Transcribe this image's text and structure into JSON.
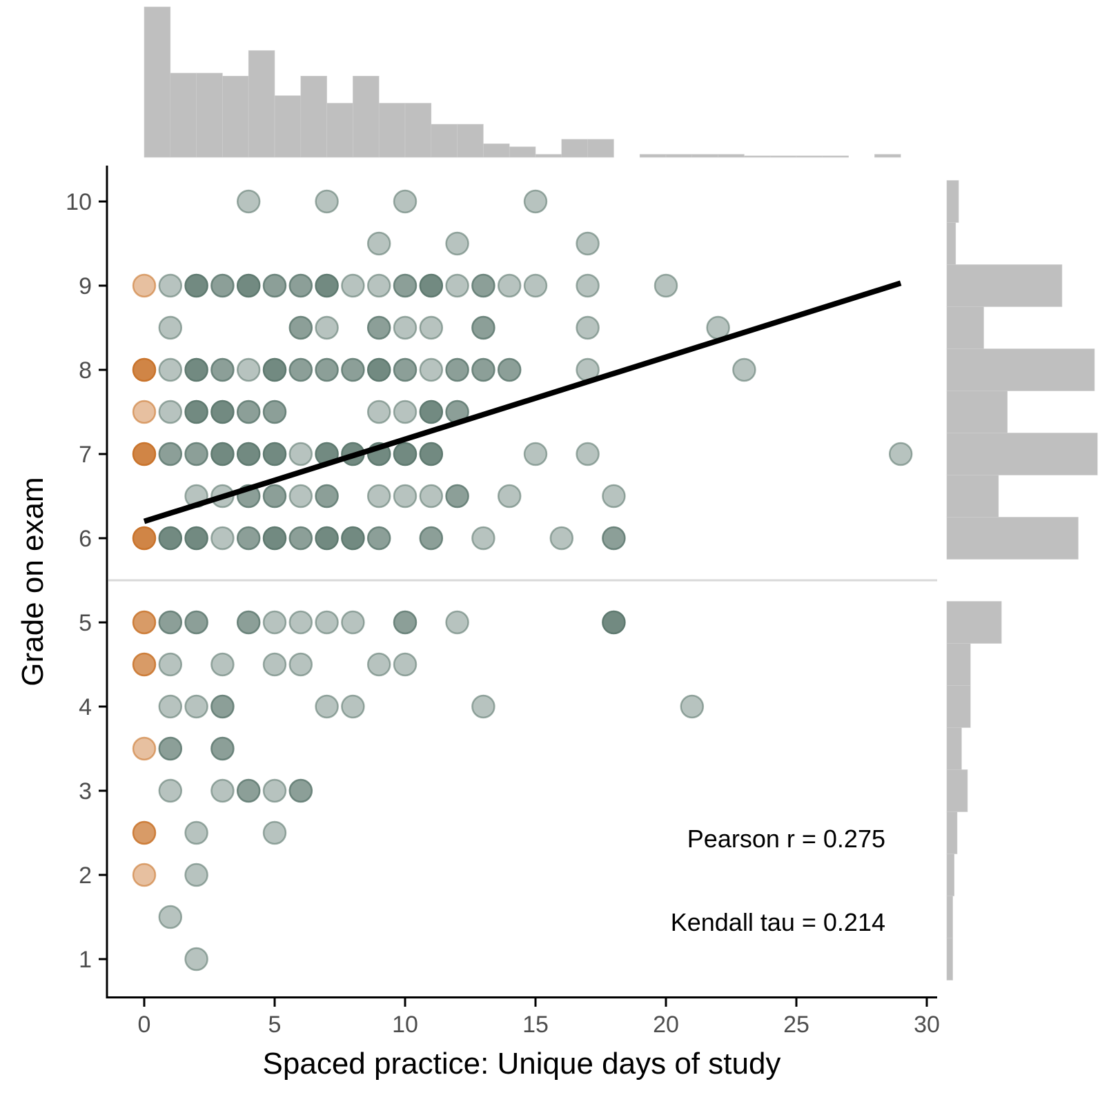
{
  "chart_data": {
    "type": "scatter",
    "x_label": "Spaced practice: Unique days of study",
    "y_label": "Grade on exam",
    "xlim": [
      -1.5,
      30.5
    ],
    "ylim": [
      0.6,
      10.4
    ],
    "x_ticks": [
      "0",
      "5",
      "10",
      "15",
      "20",
      "25",
      "30"
    ],
    "y_ticks": [
      "1",
      "2",
      "3",
      "4",
      "5",
      "6",
      "7",
      "8",
      "9",
      "10"
    ],
    "pass_threshold": 5.5,
    "annotations": {
      "pearson": "Pearson r = 0.275",
      "kendall": "Kendall tau = 0.214"
    },
    "regression_line": {
      "x": [
        0,
        29
      ],
      "y": [
        6.2,
        9.03
      ]
    },
    "colors": {
      "zero_day_points": "#c9742c",
      "study_points": "#5f7a70",
      "regression_line": "#000000",
      "histograms": "#bfbfbf",
      "threshold_line": "#d9d9d9",
      "axis": "#000000"
    },
    "points": [
      {
        "x": 4,
        "y": 10,
        "n": 1
      },
      {
        "x": 7,
        "y": 10,
        "n": 1
      },
      {
        "x": 10,
        "y": 10,
        "n": 1
      },
      {
        "x": 15,
        "y": 10,
        "n": 1
      },
      {
        "x": 9,
        "y": 9.5,
        "n": 1
      },
      {
        "x": 12,
        "y": 9.5,
        "n": 1
      },
      {
        "x": 17,
        "y": 9.5,
        "n": 1
      },
      {
        "x": 0,
        "y": 9,
        "n": 1
      },
      {
        "x": 1,
        "y": 9,
        "n": 1
      },
      {
        "x": 2,
        "y": 9,
        "n": 3
      },
      {
        "x": 3,
        "y": 9,
        "n": 2
      },
      {
        "x": 4,
        "y": 9,
        "n": 3
      },
      {
        "x": 5,
        "y": 9,
        "n": 2
      },
      {
        "x": 6,
        "y": 9,
        "n": 2
      },
      {
        "x": 7,
        "y": 9,
        "n": 3
      },
      {
        "x": 8,
        "y": 9,
        "n": 1
      },
      {
        "x": 9,
        "y": 9,
        "n": 1
      },
      {
        "x": 10,
        "y": 9,
        "n": 2
      },
      {
        "x": 11,
        "y": 9,
        "n": 3
      },
      {
        "x": 12,
        "y": 9,
        "n": 1
      },
      {
        "x": 13,
        "y": 9,
        "n": 2
      },
      {
        "x": 14,
        "y": 9,
        "n": 1
      },
      {
        "x": 15,
        "y": 9,
        "n": 1
      },
      {
        "x": 17,
        "y": 9,
        "n": 1
      },
      {
        "x": 20,
        "y": 9,
        "n": 1
      },
      {
        "x": 1,
        "y": 8.5,
        "n": 1
      },
      {
        "x": 6,
        "y": 8.5,
        "n": 2
      },
      {
        "x": 7,
        "y": 8.5,
        "n": 1
      },
      {
        "x": 9,
        "y": 8.5,
        "n": 2
      },
      {
        "x": 10,
        "y": 8.5,
        "n": 1
      },
      {
        "x": 11,
        "y": 8.5,
        "n": 1
      },
      {
        "x": 13,
        "y": 8.5,
        "n": 2
      },
      {
        "x": 17,
        "y": 8.5,
        "n": 1
      },
      {
        "x": 22,
        "y": 8.5,
        "n": 1
      },
      {
        "x": 0,
        "y": 8,
        "n": 3
      },
      {
        "x": 1,
        "y": 8,
        "n": 1
      },
      {
        "x": 2,
        "y": 8,
        "n": 3
      },
      {
        "x": 3,
        "y": 8,
        "n": 2
      },
      {
        "x": 4,
        "y": 8,
        "n": 1
      },
      {
        "x": 5,
        "y": 8,
        "n": 3
      },
      {
        "x": 6,
        "y": 8,
        "n": 2
      },
      {
        "x": 7,
        "y": 8,
        "n": 2
      },
      {
        "x": 8,
        "y": 8,
        "n": 2
      },
      {
        "x": 9,
        "y": 8,
        "n": 3
      },
      {
        "x": 10,
        "y": 8,
        "n": 2
      },
      {
        "x": 11,
        "y": 8,
        "n": 1
      },
      {
        "x": 12,
        "y": 8,
        "n": 2
      },
      {
        "x": 13,
        "y": 8,
        "n": 2
      },
      {
        "x": 14,
        "y": 8,
        "n": 2
      },
      {
        "x": 17,
        "y": 8,
        "n": 1
      },
      {
        "x": 23,
        "y": 8,
        "n": 1
      },
      {
        "x": 0,
        "y": 7.5,
        "n": 1
      },
      {
        "x": 1,
        "y": 7.5,
        "n": 1
      },
      {
        "x": 2,
        "y": 7.5,
        "n": 3
      },
      {
        "x": 3,
        "y": 7.5,
        "n": 3
      },
      {
        "x": 4,
        "y": 7.5,
        "n": 2
      },
      {
        "x": 5,
        "y": 7.5,
        "n": 2
      },
      {
        "x": 9,
        "y": 7.5,
        "n": 1
      },
      {
        "x": 10,
        "y": 7.5,
        "n": 1
      },
      {
        "x": 11,
        "y": 7.5,
        "n": 3
      },
      {
        "x": 12,
        "y": 7.5,
        "n": 2
      },
      {
        "x": 0,
        "y": 7,
        "n": 3
      },
      {
        "x": 1,
        "y": 7,
        "n": 2
      },
      {
        "x": 2,
        "y": 7,
        "n": 2
      },
      {
        "x": 3,
        "y": 7,
        "n": 3
      },
      {
        "x": 4,
        "y": 7,
        "n": 3
      },
      {
        "x": 5,
        "y": 7,
        "n": 3
      },
      {
        "x": 6,
        "y": 7,
        "n": 1
      },
      {
        "x": 7,
        "y": 7,
        "n": 3
      },
      {
        "x": 8,
        "y": 7,
        "n": 3
      },
      {
        "x": 9,
        "y": 7,
        "n": 3
      },
      {
        "x": 10,
        "y": 7,
        "n": 3
      },
      {
        "x": 11,
        "y": 7,
        "n": 3
      },
      {
        "x": 15,
        "y": 7,
        "n": 1
      },
      {
        "x": 17,
        "y": 7,
        "n": 1
      },
      {
        "x": 29,
        "y": 7,
        "n": 1
      },
      {
        "x": 2,
        "y": 6.5,
        "n": 1
      },
      {
        "x": 3,
        "y": 6.5,
        "n": 1
      },
      {
        "x": 4,
        "y": 6.5,
        "n": 2
      },
      {
        "x": 5,
        "y": 6.5,
        "n": 2
      },
      {
        "x": 6,
        "y": 6.5,
        "n": 1
      },
      {
        "x": 7,
        "y": 6.5,
        "n": 2
      },
      {
        "x": 9,
        "y": 6.5,
        "n": 1
      },
      {
        "x": 10,
        "y": 6.5,
        "n": 1
      },
      {
        "x": 11,
        "y": 6.5,
        "n": 1
      },
      {
        "x": 12,
        "y": 6.5,
        "n": 2
      },
      {
        "x": 14,
        "y": 6.5,
        "n": 1
      },
      {
        "x": 18,
        "y": 6.5,
        "n": 1
      },
      {
        "x": 0,
        "y": 6,
        "n": 3
      },
      {
        "x": 1,
        "y": 6,
        "n": 3
      },
      {
        "x": 2,
        "y": 6,
        "n": 3
      },
      {
        "x": 3,
        "y": 6,
        "n": 1
      },
      {
        "x": 4,
        "y": 6,
        "n": 2
      },
      {
        "x": 5,
        "y": 6,
        "n": 3
      },
      {
        "x": 6,
        "y": 6,
        "n": 2
      },
      {
        "x": 7,
        "y": 6,
        "n": 3
      },
      {
        "x": 8,
        "y": 6,
        "n": 3
      },
      {
        "x": 9,
        "y": 6,
        "n": 2
      },
      {
        "x": 11,
        "y": 6,
        "n": 2
      },
      {
        "x": 13,
        "y": 6,
        "n": 1
      },
      {
        "x": 16,
        "y": 6,
        "n": 1
      },
      {
        "x": 18,
        "y": 6,
        "n": 2
      },
      {
        "x": 0,
        "y": 5,
        "n": 2
      },
      {
        "x": 1,
        "y": 5,
        "n": 2
      },
      {
        "x": 2,
        "y": 5,
        "n": 2
      },
      {
        "x": 4,
        "y": 5,
        "n": 2
      },
      {
        "x": 5,
        "y": 5,
        "n": 1
      },
      {
        "x": 6,
        "y": 5,
        "n": 1
      },
      {
        "x": 7,
        "y": 5,
        "n": 1
      },
      {
        "x": 8,
        "y": 5,
        "n": 1
      },
      {
        "x": 10,
        "y": 5,
        "n": 2
      },
      {
        "x": 12,
        "y": 5,
        "n": 1
      },
      {
        "x": 18,
        "y": 5,
        "n": 3
      },
      {
        "x": 0,
        "y": 4.5,
        "n": 2
      },
      {
        "x": 1,
        "y": 4.5,
        "n": 1
      },
      {
        "x": 3,
        "y": 4.5,
        "n": 1
      },
      {
        "x": 5,
        "y": 4.5,
        "n": 1
      },
      {
        "x": 6,
        "y": 4.5,
        "n": 1
      },
      {
        "x": 9,
        "y": 4.5,
        "n": 1
      },
      {
        "x": 10,
        "y": 4.5,
        "n": 1
      },
      {
        "x": 1,
        "y": 4,
        "n": 1
      },
      {
        "x": 2,
        "y": 4,
        "n": 1
      },
      {
        "x": 3,
        "y": 4,
        "n": 2
      },
      {
        "x": 7,
        "y": 4,
        "n": 1
      },
      {
        "x": 8,
        "y": 4,
        "n": 1
      },
      {
        "x": 13,
        "y": 4,
        "n": 1
      },
      {
        "x": 21,
        "y": 4,
        "n": 1
      },
      {
        "x": 0,
        "y": 3.5,
        "n": 1
      },
      {
        "x": 1,
        "y": 3.5,
        "n": 2
      },
      {
        "x": 3,
        "y": 3.5,
        "n": 2
      },
      {
        "x": 1,
        "y": 3,
        "n": 1
      },
      {
        "x": 3,
        "y": 3,
        "n": 1
      },
      {
        "x": 4,
        "y": 3,
        "n": 2
      },
      {
        "x": 5,
        "y": 3,
        "n": 1
      },
      {
        "x": 6,
        "y": 3,
        "n": 2
      },
      {
        "x": 0,
        "y": 2.5,
        "n": 2
      },
      {
        "x": 2,
        "y": 2.5,
        "n": 1
      },
      {
        "x": 5,
        "y": 2.5,
        "n": 1
      },
      {
        "x": 0,
        "y": 2,
        "n": 1
      },
      {
        "x": 2,
        "y": 2,
        "n": 1
      },
      {
        "x": 1,
        "y": 1.5,
        "n": 1
      },
      {
        "x": 2,
        "y": 1,
        "n": 1
      }
    ],
    "x_histogram": {
      "bin_width": 1,
      "bin_starts": [
        0,
        1,
        2,
        3,
        4,
        5,
        6,
        7,
        8,
        9,
        10,
        11,
        12,
        13,
        14,
        15,
        16,
        17,
        18,
        19,
        20,
        21,
        22,
        23,
        24,
        25,
        26,
        27,
        28
      ],
      "heights": [
        1.0,
        0.56,
        0.56,
        0.54,
        0.71,
        0.41,
        0.54,
        0.36,
        0.54,
        0.36,
        0.36,
        0.22,
        0.22,
        0.09,
        0.07,
        0.02,
        0.12,
        0.12,
        0,
        0.02,
        0.02,
        0.02,
        0.02,
        0.01,
        0.01,
        0.01,
        0.01,
        0,
        0.02
      ]
    },
    "y_histogram": {
      "bin_height": 0.5,
      "bin_centers": [
        10,
        9.5,
        9,
        8.5,
        8,
        7.5,
        7,
        6.5,
        6,
        5.5,
        5,
        4.5,
        4,
        3.5,
        3,
        2.5,
        2,
        1.5,
        1
      ],
      "widths": [
        0.08,
        0.06,
        0.78,
        0.25,
        1.0,
        0.41,
        1.02,
        0.35,
        0.89,
        0,
        0.37,
        0.16,
        0.16,
        0.1,
        0.14,
        0.07,
        0.05,
        0.04,
        0.04
      ]
    }
  }
}
